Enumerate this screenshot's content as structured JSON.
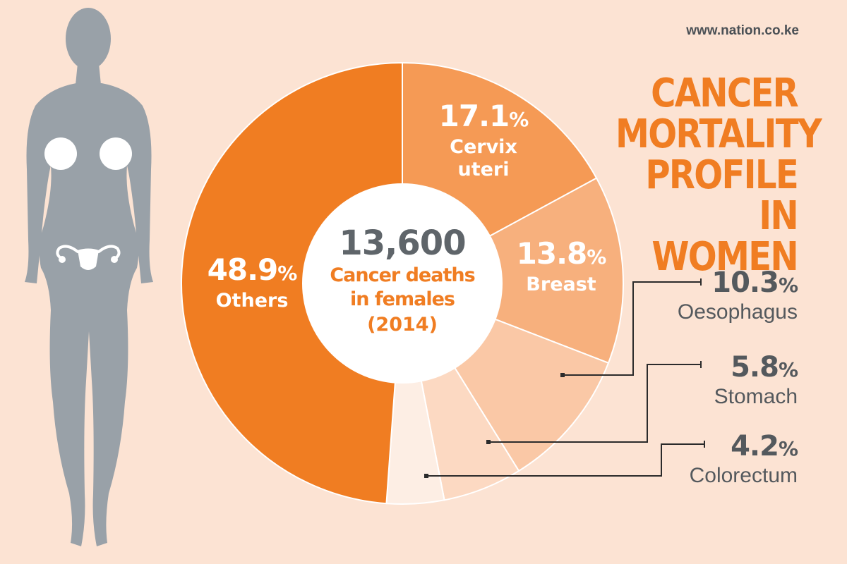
{
  "site": "www.nation.co.ke",
  "title_lines": [
    "CANCER",
    "MORTALITY",
    "PROFILE IN",
    "WOMEN"
  ],
  "center": {
    "number": "13,600",
    "line1": "Cancer deaths",
    "line2": "in females",
    "line3": "(2014)"
  },
  "colors": {
    "background": "#fce3d3",
    "accent": "#f07d22",
    "text_gray": "#54595d",
    "figure": "#99a1a8",
    "white": "#ffffff"
  },
  "chart_data": {
    "type": "pie",
    "title": "CANCER MORTALITY PROFILE IN WOMEN",
    "total": 13600,
    "year": 2014,
    "slices": [
      {
        "name": "Cervix uteri",
        "label": "Cervix uteri",
        "value": 17.1,
        "display": "17.1",
        "color": "#f59a55"
      },
      {
        "name": "Breast",
        "label": "Breast",
        "value": 13.8,
        "display": "13.8",
        "color": "#f7b07d"
      },
      {
        "name": "Oesophagus",
        "label": "Oesophagus",
        "value": 10.3,
        "display": "10.3",
        "color": "#fac8a6"
      },
      {
        "name": "Stomach",
        "label": "Stomach",
        "value": 5.8,
        "display": "5.8",
        "color": "#fcd9c2"
      },
      {
        "name": "Colorectum",
        "label": "Colorectum",
        "value": 4.2,
        "display": "4.2",
        "color": "#fdeee4"
      },
      {
        "name": "Others",
        "label": "Others",
        "value": 48.9,
        "display": "48.9",
        "color": "#f07d22"
      }
    ]
  }
}
